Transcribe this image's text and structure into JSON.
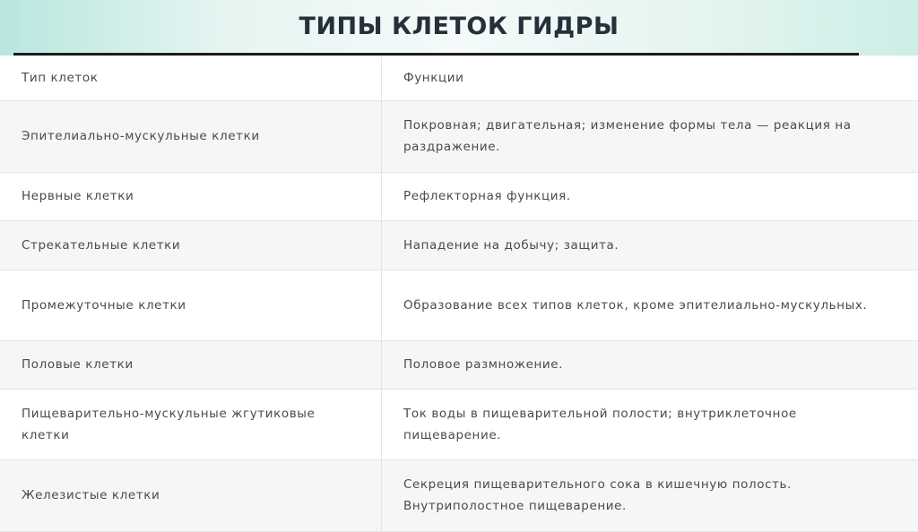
{
  "header": {
    "title": "ТИПЫ КЛЕТОК ГИДРЫ"
  },
  "table": {
    "columns": [
      "Тип клеток",
      "Функции"
    ],
    "rows": [
      [
        "Эпителиально-мускульные клетки",
        "Покровная; двигательная; изменение формы тела — реакция на раздражение."
      ],
      [
        "Нервные клетки",
        "Рефлекторная функция."
      ],
      [
        "Стрекательные клетки",
        "Нападение на добычу; защита."
      ],
      [
        "Промежуточные клетки",
        "Образование всех типов клеток, кроме эпителиально-мускульных."
      ],
      [
        "Половые клетки",
        "Половое размножение."
      ],
      [
        "Пищеварительно-мускульные жгутиковые клетки",
        "Ток воды в пищеварительной полости; внутриклеточное пищеварение."
      ],
      [
        "Железистые клетки",
        "Секреция пищеварительного сока в кишечную полость. Внутриполостное пищеварение."
      ]
    ]
  }
}
